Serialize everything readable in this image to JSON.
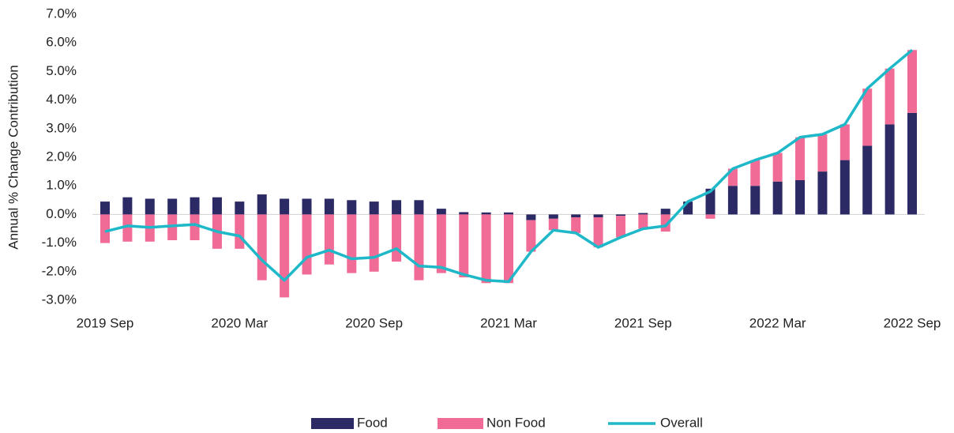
{
  "chart_data": {
    "type": "bar",
    "y_label": "Annual % Change Contribution",
    "categories": [
      "2019 Sep",
      null,
      null,
      null,
      null,
      null,
      "2020 Mar",
      null,
      null,
      null,
      null,
      null,
      "2020 Sep",
      null,
      null,
      null,
      null,
      null,
      "2021 Mar",
      null,
      null,
      null,
      null,
      null,
      "2021 Sep",
      null,
      null,
      null,
      null,
      null,
      "2022 Mar",
      null,
      null,
      null,
      null,
      null,
      "2022 Sep"
    ],
    "series": [
      {
        "name": "Food",
        "type": "bar",
        "color": "#2b2a64",
        "values": [
          0.45,
          0.6,
          0.55,
          0.55,
          0.6,
          0.6,
          0.45,
          0.7,
          0.55,
          0.55,
          0.55,
          0.5,
          0.45,
          0.5,
          0.5,
          0.2,
          0.08,
          0.07,
          0.07,
          -0.2,
          -0.15,
          -0.1,
          -0.1,
          -0.05,
          0.05,
          0.2,
          0.45,
          0.9,
          1.0,
          1.0,
          1.15,
          1.2,
          1.5,
          1.9,
          2.4,
          3.15,
          3.55
        ]
      },
      {
        "name": "Non Food",
        "type": "bar",
        "color": "#f06b96",
        "values": [
          -1.0,
          -0.95,
          -0.95,
          -0.9,
          -0.9,
          -1.2,
          -1.2,
          -2.3,
          -2.9,
          -2.1,
          -1.75,
          -2.05,
          -2.0,
          -1.65,
          -2.3,
          -2.05,
          -2.2,
          -2.4,
          -2.4,
          -1.1,
          -0.4,
          -0.55,
          -1.05,
          -0.75,
          -0.5,
          -0.6,
          0.0,
          -0.15,
          0.6,
          0.9,
          1.0,
          1.5,
          1.3,
          1.25,
          2.0,
          1.95,
          2.2
        ]
      },
      {
        "name": "Overall",
        "type": "line",
        "color": "#1eb8c8",
        "values": [
          -0.6,
          -0.4,
          -0.45,
          -0.4,
          -0.35,
          -0.6,
          -0.75,
          -1.6,
          -2.3,
          -1.5,
          -1.25,
          -1.55,
          -1.5,
          -1.2,
          -1.8,
          -1.85,
          -2.1,
          -2.3,
          -2.35,
          -1.3,
          -0.55,
          -0.65,
          -1.15,
          -0.8,
          -0.5,
          -0.4,
          0.45,
          0.8,
          1.6,
          1.9,
          2.15,
          2.7,
          2.8,
          3.15,
          4.4,
          5.1,
          5.75
        ]
      }
    ],
    "ylim": [
      -3,
      7
    ],
    "yticks": [
      {
        "value": -3,
        "label": "-3.0%"
      },
      {
        "value": -2,
        "label": "-2.0%"
      },
      {
        "value": -1,
        "label": "-1.0%"
      },
      {
        "value": 0,
        "label": "0.0%"
      },
      {
        "value": 1,
        "label": "1.0%"
      },
      {
        "value": 2,
        "label": "2.0%"
      },
      {
        "value": 3,
        "label": "3.0%"
      },
      {
        "value": 4,
        "label": "4.0%"
      },
      {
        "value": 5,
        "label": "5.0%"
      },
      {
        "value": 6,
        "label": "6.0%"
      },
      {
        "value": 7,
        "label": "7.0%"
      }
    ],
    "legend": "bottom"
  }
}
